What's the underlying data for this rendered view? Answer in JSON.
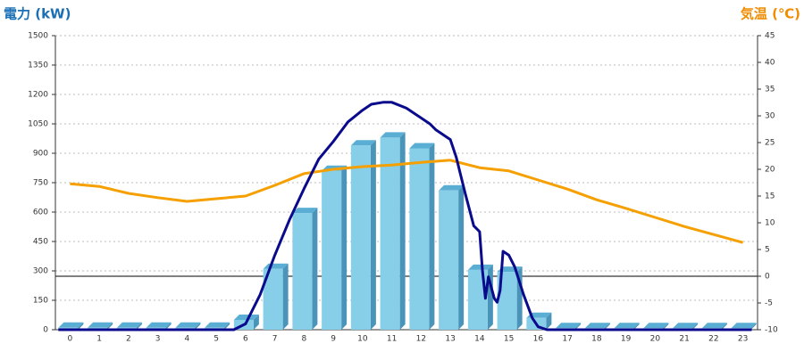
{
  "chart_data": {
    "type": "bar",
    "y_label": "電力 (kW)",
    "y2_label": "気温 (℃)",
    "categories": [
      "0",
      "1",
      "2",
      "3",
      "4",
      "5",
      "6",
      "7",
      "8",
      "9",
      "10",
      "11",
      "12",
      "13",
      "14",
      "15",
      "16",
      "17",
      "18",
      "19",
      "20",
      "21",
      "22",
      "23"
    ],
    "ylim": [
      0,
      1500
    ],
    "yticks": [
      0,
      150,
      300,
      450,
      600,
      750,
      900,
      1050,
      1200,
      1350,
      1500
    ],
    "y2lim": [
      -10,
      45
    ],
    "y2ticks": [
      -10,
      -5,
      0,
      5,
      10,
      15,
      20,
      25,
      30,
      35,
      40,
      45
    ],
    "grid": true,
    "series": [
      {
        "kind": "bar",
        "color": "#87cee8",
        "values": [
          10,
          10,
          10,
          10,
          10,
          10,
          50,
          310,
          595,
          810,
          940,
          980,
          925,
          710,
          305,
          295,
          60,
          8,
          8,
          8,
          8,
          8,
          8,
          8
        ]
      },
      {
        "kind": "line",
        "axis": "y2",
        "color": "#f5a000",
        "values": [
          17.3,
          16.8,
          15.5,
          14.7,
          14,
          14.5,
          15,
          17,
          19.2,
          20,
          20.5,
          20.8,
          21.3,
          21.7,
          20.3,
          19.7,
          18,
          16.3,
          14.3,
          12.7,
          11,
          9.3,
          7.8,
          6.3
        ]
      },
      {
        "kind": "line",
        "color": "#0a0a8c",
        "x": [
          -0.4,
          5.6,
          6,
          6.5,
          7,
          7.5,
          8,
          8.5,
          9,
          9.5,
          10,
          10.3,
          10.7,
          11,
          11.5,
          12,
          12.3,
          12.5,
          12.7,
          12.8,
          13,
          13.2,
          13.5,
          13.8,
          14,
          14.1,
          14.2,
          14.3,
          14.5,
          14.6,
          14.7,
          14.8,
          15,
          15.2,
          15.5,
          15.8,
          16,
          16.3,
          23.3
        ],
        "values": [
          0,
          0,
          30,
          180,
          380,
          560,
          720,
          870,
          960,
          1060,
          1120,
          1150,
          1160,
          1160,
          1130,
          1080,
          1050,
          1020,
          1000,
          990,
          970,
          880,
          700,
          530,
          500,
          300,
          160,
          270,
          160,
          140,
          200,
          400,
          380,
          320,
          180,
          60,
          15,
          0,
          0
        ]
      }
    ]
  }
}
